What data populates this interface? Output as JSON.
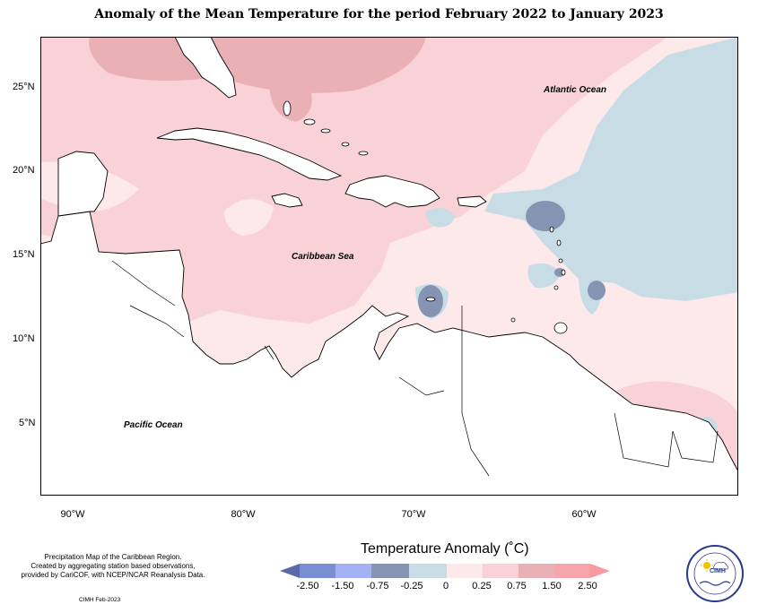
{
  "title": "Anomaly of the Mean Temperature for the period February 2022 to January 2023",
  "map": {
    "labels": {
      "atlantic": "Atlantic Ocean",
      "caribbean": "Caribbean Sea",
      "pacific": "Pacific Ocean"
    },
    "x_ticks": [
      "90°W",
      "80°W",
      "70°W",
      "60°W"
    ],
    "y_ticks": [
      "25°N",
      "20°N",
      "15°N",
      "10°N",
      "5°N"
    ]
  },
  "legend": {
    "title": "Temperature Anomaly (˚C)",
    "bins": [
      {
        "color": "#5a6aa6"
      },
      {
        "color": "#7b8ed4"
      },
      {
        "color": "#a4b2f5"
      },
      {
        "color": "#8494b2"
      },
      {
        "color": "#c7dce4"
      },
      {
        "color": "#fde9ea"
      },
      {
        "color": "#f9d2d8"
      },
      {
        "color": "#e9b0b6"
      },
      {
        "color": "#f8a4ac"
      },
      {
        "color": "#f79aa2"
      }
    ],
    "labels": [
      "-2.50",
      "-1.50",
      "-0.75",
      "-0.25",
      "0",
      "0.25",
      "0.75",
      "1.50",
      "2.50"
    ]
  },
  "credits": {
    "line1": "Precipitation Map of the Caribbean Region.",
    "line2": "Created by aggregating station based observations,",
    "line3": "provided by CariCOF, with NCEP/NCAR Reanalysis Data."
  },
  "date": "CIMH Feb-2023",
  "logo": {
    "text": "CIMH"
  }
}
